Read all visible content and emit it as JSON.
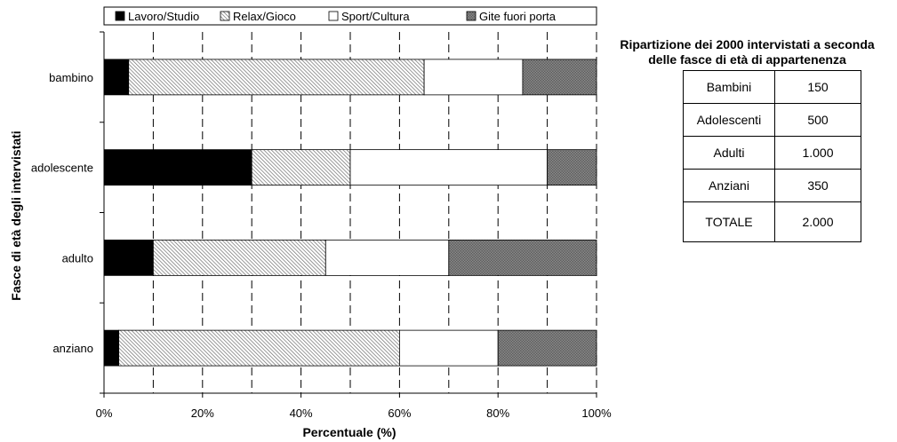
{
  "chart_data": {
    "type": "bar",
    "orientation": "horizontal",
    "stacked": true,
    "categories": [
      "bambino",
      "adolescente",
      "adulto",
      "anziano"
    ],
    "series": [
      {
        "name": "Lavoro/Studio",
        "values": [
          5,
          30,
          10,
          3
        ],
        "color": "#000000",
        "pattern": "solid"
      },
      {
        "name": "Relax/Gioco",
        "values": [
          60,
          20,
          35,
          57
        ],
        "color": "#d9d9d9",
        "pattern": "diagonal-lines"
      },
      {
        "name": "Sport/Cultura",
        "values": [
          20,
          40,
          25,
          20
        ],
        "color": "#ffffff",
        "pattern": "solid"
      },
      {
        "name": "Gite fuori porta",
        "values": [
          15,
          10,
          30,
          20
        ],
        "color": "#808080",
        "pattern": "dense-crosshatch"
      }
    ],
    "xlabel": "Percentuale (%)",
    "ylabel": "Fasce di età degli intervistati",
    "xlim": [
      0,
      100
    ],
    "x_ticks": [
      "0%",
      "20%",
      "40%",
      "60%",
      "80%",
      "100%"
    ],
    "grid": "dashed vertical lines every 10%",
    "legend_position": "top"
  },
  "table": {
    "title_line1": "Ripartizione dei 2000 intervistati a seconda",
    "title_line2": "delle fasce di età di appartenenza",
    "rows": [
      {
        "label": "Bambini",
        "value": "150"
      },
      {
        "label": "Adolescenti",
        "value": "500"
      },
      {
        "label": "Adulti",
        "value": "1.000"
      },
      {
        "label": "Anziani",
        "value": "350"
      },
      {
        "label": "TOTALE",
        "value": "2.000"
      }
    ]
  }
}
